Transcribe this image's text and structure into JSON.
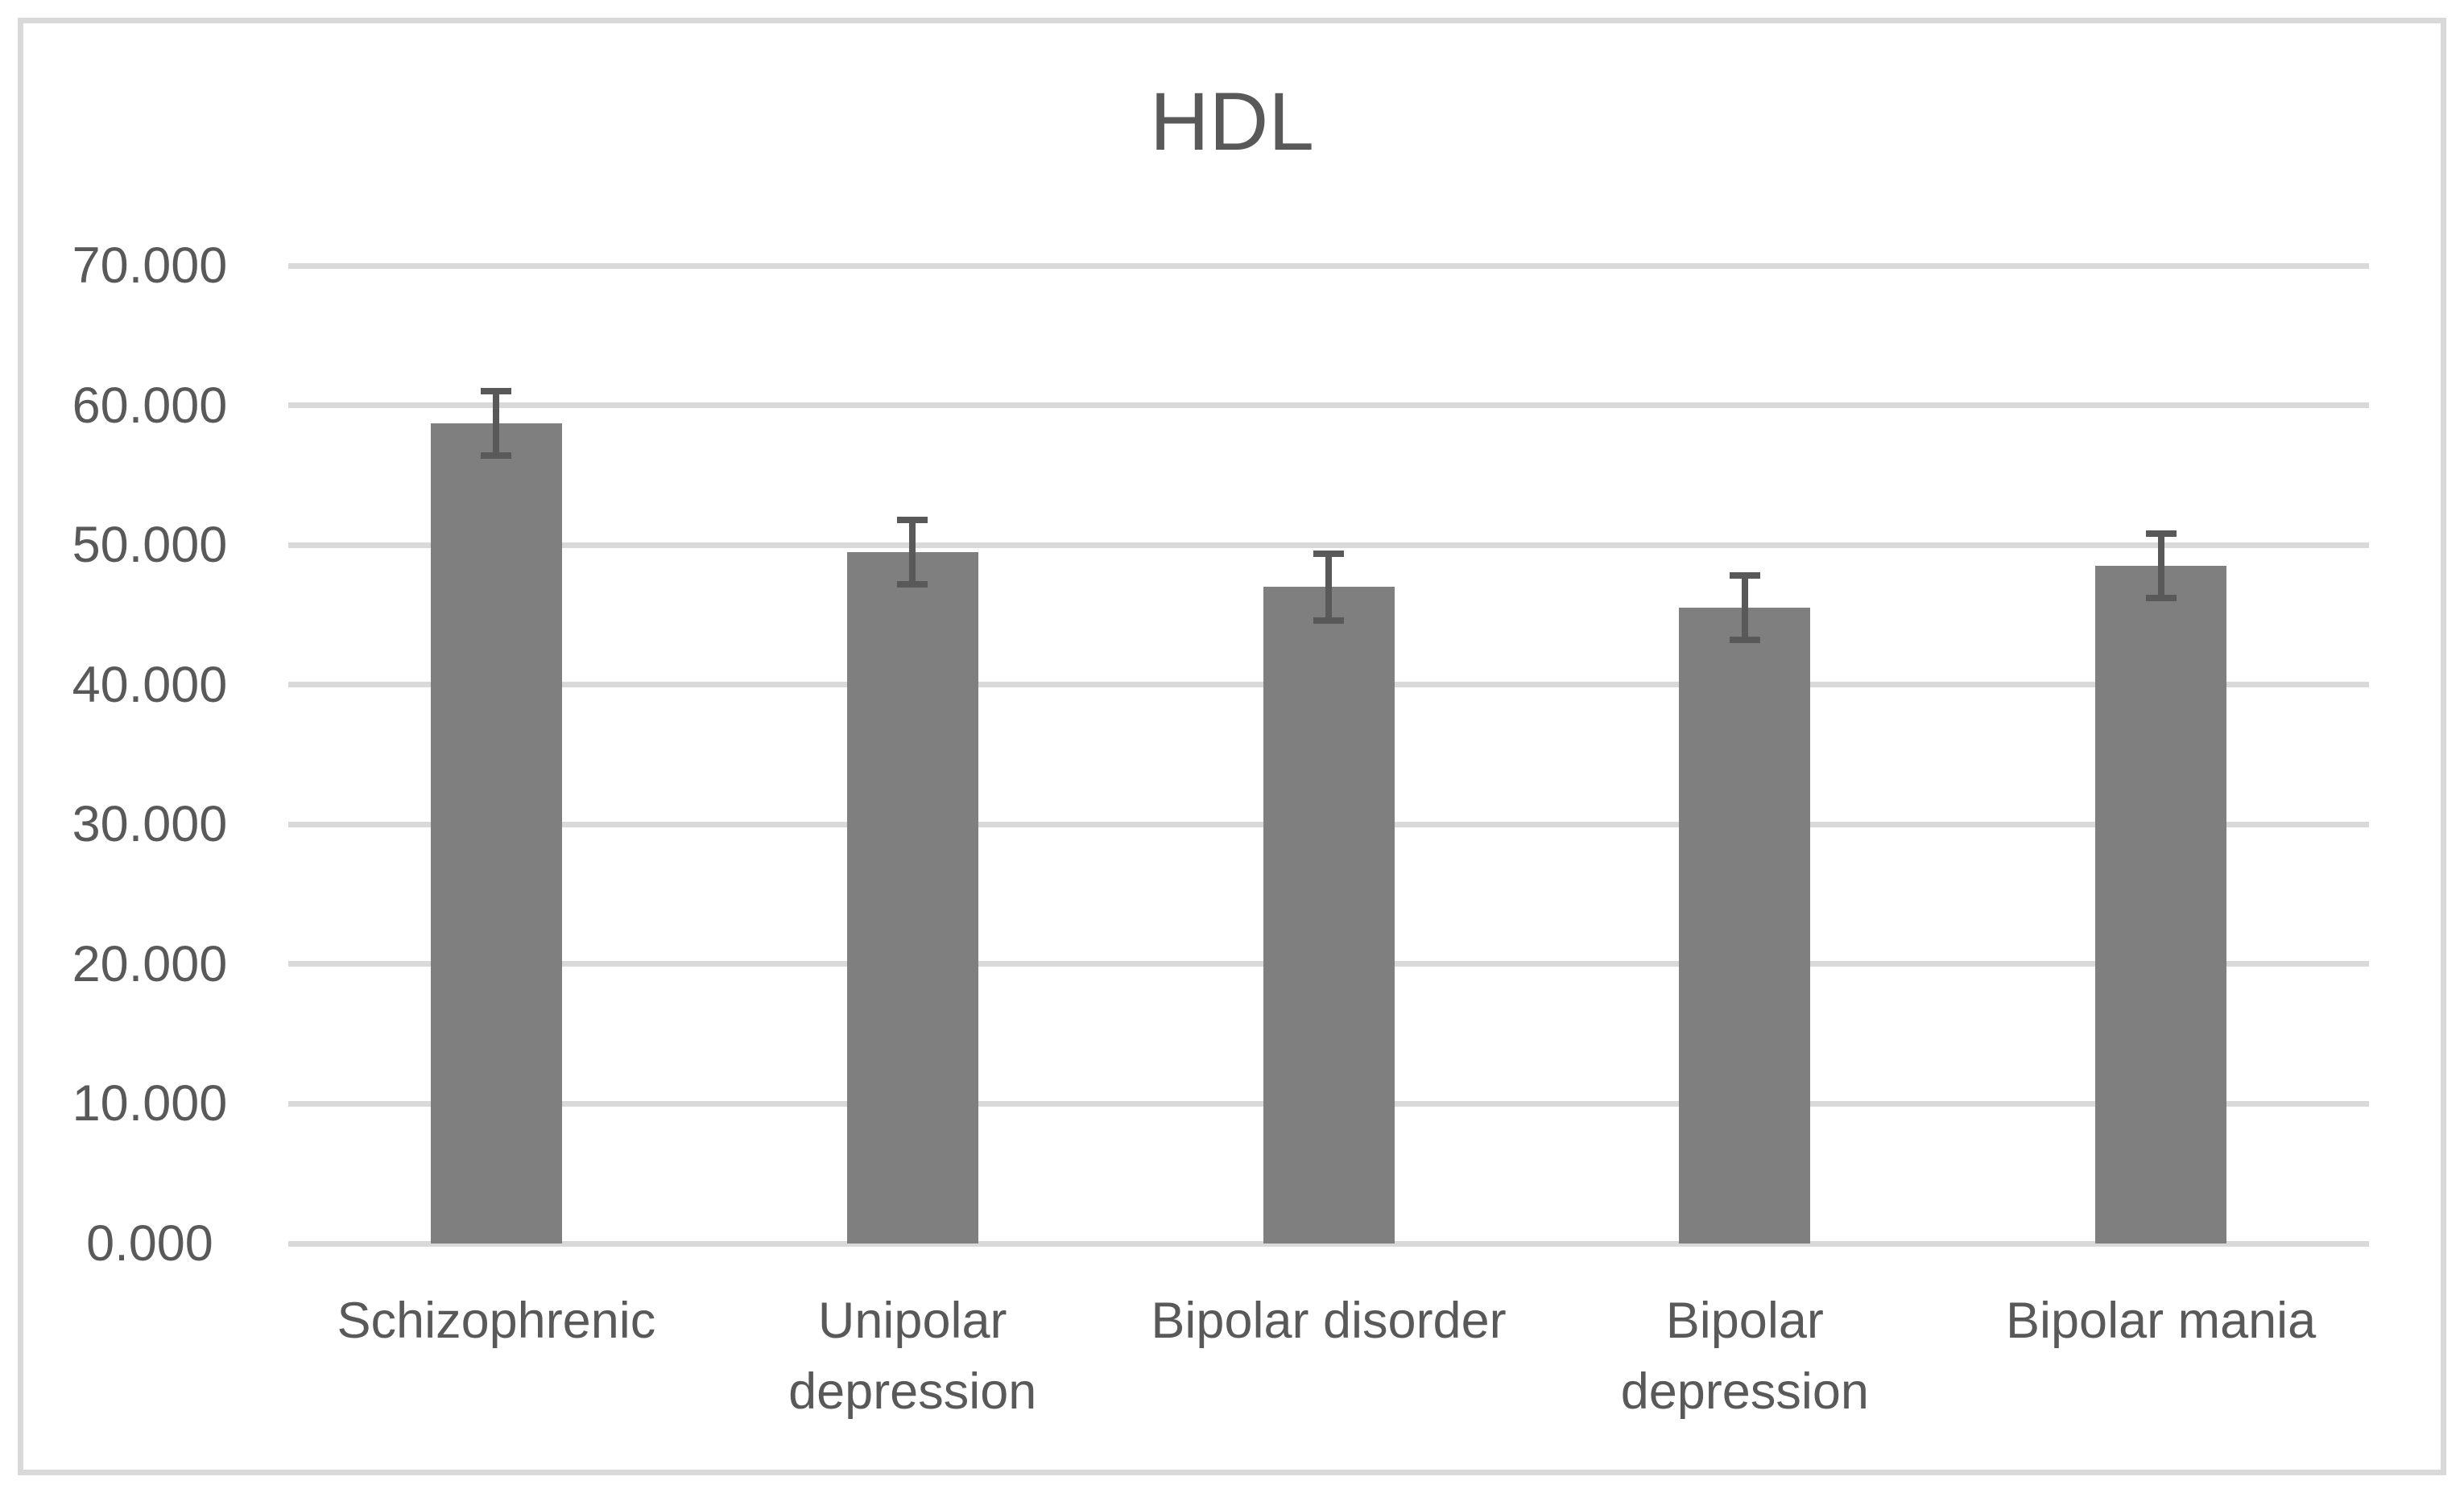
{
  "chart_data": {
    "type": "bar",
    "title": "HDL",
    "categories": [
      "Schizophrenic",
      "Unipolar depression",
      "Bipolar disorder",
      "Bipolar depression",
      "Bipolar mania"
    ],
    "values": [
      58.7,
      49.5,
      47.0,
      45.5,
      48.5
    ],
    "error_bars": [
      2.3,
      2.3,
      2.4,
      2.3,
      2.3
    ],
    "xlabel": "",
    "ylabel": "",
    "ylim": [
      0,
      70
    ],
    "ytick_step": 10,
    "ytick_labels": [
      "0.000",
      "10.000",
      "20.000",
      "30.000",
      "40.000",
      "50.000",
      "60.000",
      "70.000"
    ],
    "grid": true,
    "legend": "none",
    "colors": {
      "bar": "#7F7F7F",
      "error_bar": "#595959",
      "gridline": "#D9D9D9",
      "frame_border": "#D9D9D9",
      "text": "#595959",
      "background": "#FFFFFF"
    }
  }
}
